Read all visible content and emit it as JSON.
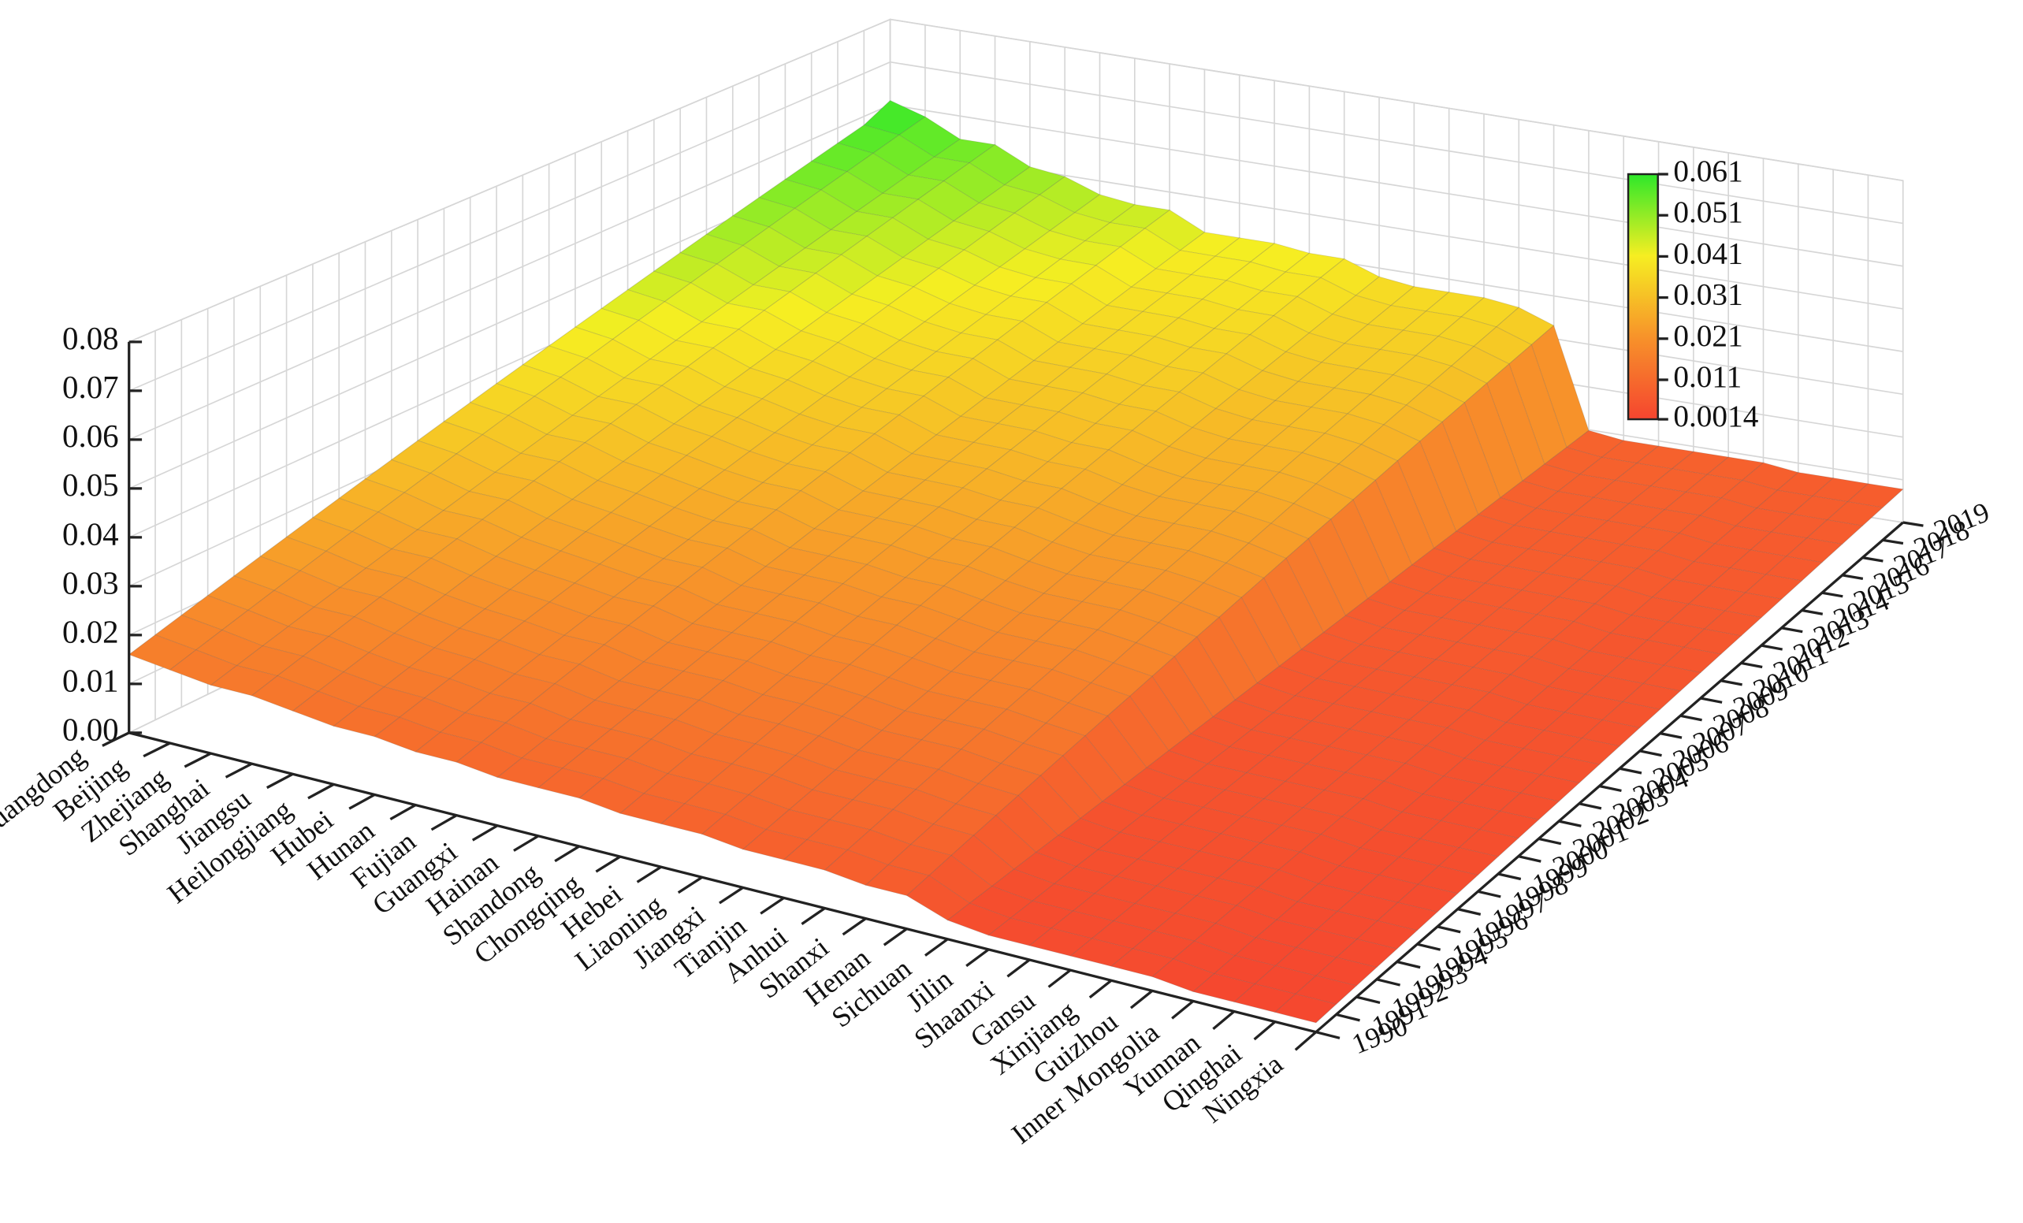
{
  "chart_data": {
    "type": "surface",
    "x_categories": [
      "Guangdong",
      "Beijing",
      "Zhejiang",
      "Shanghai",
      "Jiangsu",
      "Heilongjiang",
      "Hubei",
      "Hunan",
      "Fujian",
      "Guangxi",
      "Hainan",
      "Shandong",
      "Chongqing",
      "Hebei",
      "Liaoning",
      "Jiangxi",
      "Tianjin",
      "Anhui",
      "Shanxi",
      "Henan",
      "Sichuan",
      "Jilin",
      "Shaanxi",
      "Gansu",
      "Xinjiang",
      "Guizhou",
      "Inner Mongolia",
      "Yunnan",
      "Qinghai",
      "Ningxia"
    ],
    "y_categories": [
      "1990",
      "1991",
      "1992",
      "1993",
      "1994",
      "1995",
      "1996",
      "1997",
      "1998",
      "1999",
      "2000",
      "2001",
      "2002",
      "2003",
      "2004",
      "2005",
      "2006",
      "2007",
      "2008",
      "2009",
      "2010",
      "2011",
      "2012",
      "2013",
      "2014",
      "2015",
      "2016",
      "2017",
      "2018",
      "2019"
    ],
    "z": [
      [
        0.016,
        0.0175,
        0.019,
        0.0205,
        0.022,
        0.0235,
        0.025,
        0.0265,
        0.028,
        0.0295,
        0.031,
        0.0325,
        0.034,
        0.0355,
        0.037,
        0.0385,
        0.04,
        0.0415,
        0.043,
        0.0445,
        0.046,
        0.0475,
        0.049,
        0.0505,
        0.052,
        0.0535,
        0.055,
        0.0565,
        0.058,
        0.061
      ],
      [
        0.015,
        0.0165,
        0.018,
        0.0195,
        0.021,
        0.0225,
        0.024,
        0.0255,
        0.027,
        0.0285,
        0.03,
        0.0315,
        0.033,
        0.0345,
        0.036,
        0.0375,
        0.039,
        0.0405,
        0.042,
        0.0435,
        0.045,
        0.0465,
        0.048,
        0.0495,
        0.051,
        0.0525,
        0.054,
        0.0555,
        0.057,
        0.0585
      ],
      [
        0.014,
        0.0154,
        0.0168,
        0.0182,
        0.0196,
        0.021,
        0.0224,
        0.0238,
        0.0252,
        0.0266,
        0.028,
        0.0294,
        0.0308,
        0.0322,
        0.0336,
        0.035,
        0.0364,
        0.0378,
        0.0392,
        0.0406,
        0.042,
        0.0434,
        0.0448,
        0.0462,
        0.0476,
        0.049,
        0.0504,
        0.0518,
        0.0532,
        0.0546
      ],
      [
        0.014,
        0.0154,
        0.0168,
        0.0182,
        0.0196,
        0.021,
        0.0224,
        0.0238,
        0.0252,
        0.0266,
        0.028,
        0.0294,
        0.0308,
        0.0322,
        0.0336,
        0.035,
        0.0364,
        0.0378,
        0.0392,
        0.0406,
        0.042,
        0.0434,
        0.0448,
        0.0462,
        0.0476,
        0.049,
        0.0504,
        0.0518,
        0.0532,
        0.0546
      ],
      [
        0.013,
        0.0143,
        0.0156,
        0.0169,
        0.0182,
        0.0195,
        0.0208,
        0.0221,
        0.0234,
        0.0247,
        0.026,
        0.0273,
        0.0286,
        0.0299,
        0.0312,
        0.0325,
        0.0338,
        0.0351,
        0.0364,
        0.0377,
        0.039,
        0.0403,
        0.0416,
        0.0429,
        0.0442,
        0.0455,
        0.0468,
        0.0481,
        0.0494,
        0.0507
      ],
      [
        0.012,
        0.0133,
        0.0146,
        0.0159,
        0.0172,
        0.0185,
        0.0198,
        0.0211,
        0.0224,
        0.0237,
        0.025,
        0.0263,
        0.0276,
        0.0289,
        0.0302,
        0.0315,
        0.0328,
        0.0341,
        0.0354,
        0.0367,
        0.038,
        0.0393,
        0.0406,
        0.0419,
        0.0432,
        0.0445,
        0.0458,
        0.0471,
        0.0484,
        0.0497
      ],
      [
        0.012,
        0.0132,
        0.0144,
        0.0156,
        0.0168,
        0.018,
        0.0192,
        0.0204,
        0.0216,
        0.0228,
        0.024,
        0.0252,
        0.0264,
        0.0276,
        0.0288,
        0.03,
        0.0312,
        0.0324,
        0.0336,
        0.0348,
        0.036,
        0.0372,
        0.0384,
        0.0396,
        0.0408,
        0.042,
        0.0432,
        0.0444,
        0.0456,
        0.0468
      ],
      [
        0.011,
        0.0122,
        0.0134,
        0.0146,
        0.0158,
        0.017,
        0.0182,
        0.0194,
        0.0206,
        0.0218,
        0.023,
        0.0242,
        0.0254,
        0.0266,
        0.0278,
        0.029,
        0.0302,
        0.0314,
        0.0326,
        0.0338,
        0.035,
        0.0362,
        0.0374,
        0.0386,
        0.0398,
        0.041,
        0.0422,
        0.0434,
        0.0446,
        0.0458
      ],
      [
        0.011,
        0.0122,
        0.0134,
        0.0146,
        0.0158,
        0.017,
        0.0182,
        0.0194,
        0.0206,
        0.0218,
        0.023,
        0.0242,
        0.0254,
        0.0266,
        0.0278,
        0.029,
        0.0302,
        0.0314,
        0.0326,
        0.0338,
        0.035,
        0.0362,
        0.0374,
        0.0386,
        0.0398,
        0.041,
        0.0422,
        0.0434,
        0.0446,
        0.0458
      ],
      [
        0.01,
        0.0111,
        0.0122,
        0.0133,
        0.0144,
        0.0155,
        0.0166,
        0.0177,
        0.0188,
        0.0199,
        0.021,
        0.0221,
        0.0232,
        0.0243,
        0.0254,
        0.0265,
        0.0276,
        0.0287,
        0.0298,
        0.0309,
        0.032,
        0.0331,
        0.0342,
        0.0353,
        0.0364,
        0.0375,
        0.0386,
        0.0397,
        0.0408,
        0.0419
      ],
      [
        0.01,
        0.0111,
        0.0122,
        0.0133,
        0.0144,
        0.0155,
        0.0166,
        0.0177,
        0.0188,
        0.0199,
        0.021,
        0.0221,
        0.0232,
        0.0243,
        0.0254,
        0.0265,
        0.0276,
        0.0287,
        0.0298,
        0.0309,
        0.032,
        0.0331,
        0.0342,
        0.0353,
        0.0364,
        0.0375,
        0.0386,
        0.0397,
        0.0408,
        0.0419
      ],
      [
        0.01,
        0.0111,
        0.0122,
        0.0133,
        0.0144,
        0.0155,
        0.0166,
        0.0177,
        0.0188,
        0.0199,
        0.021,
        0.0221,
        0.0232,
        0.0243,
        0.0254,
        0.0265,
        0.0276,
        0.0287,
        0.0298,
        0.0309,
        0.032,
        0.0331,
        0.0342,
        0.0353,
        0.0364,
        0.0375,
        0.0386,
        0.0397,
        0.0408,
        0.0419
      ],
      [
        0.009,
        0.0101,
        0.0112,
        0.0123,
        0.0134,
        0.0145,
        0.0156,
        0.0167,
        0.0178,
        0.0189,
        0.02,
        0.0211,
        0.0222,
        0.0233,
        0.0244,
        0.0255,
        0.0266,
        0.0277,
        0.0288,
        0.0299,
        0.031,
        0.0321,
        0.0332,
        0.0343,
        0.0354,
        0.0365,
        0.0376,
        0.0387,
        0.0398,
        0.0409
      ],
      [
        0.009,
        0.0101,
        0.0112,
        0.0123,
        0.0134,
        0.0145,
        0.0156,
        0.0167,
        0.0178,
        0.0189,
        0.02,
        0.0211,
        0.0222,
        0.0233,
        0.0244,
        0.0255,
        0.0266,
        0.0277,
        0.0288,
        0.0299,
        0.031,
        0.0321,
        0.0332,
        0.0343,
        0.0354,
        0.0365,
        0.0376,
        0.0387,
        0.0398,
        0.0409
      ],
      [
        0.009,
        0.01,
        0.011,
        0.012,
        0.013,
        0.014,
        0.015,
        0.016,
        0.017,
        0.018,
        0.019,
        0.02,
        0.021,
        0.022,
        0.023,
        0.024,
        0.025,
        0.026,
        0.027,
        0.028,
        0.029,
        0.03,
        0.031,
        0.032,
        0.033,
        0.034,
        0.035,
        0.036,
        0.037,
        0.038
      ],
      [
        0.008,
        0.009,
        0.01,
        0.011,
        0.012,
        0.013,
        0.014,
        0.015,
        0.016,
        0.017,
        0.018,
        0.019,
        0.02,
        0.021,
        0.022,
        0.023,
        0.024,
        0.025,
        0.026,
        0.027,
        0.028,
        0.029,
        0.03,
        0.031,
        0.032,
        0.033,
        0.034,
        0.035,
        0.036,
        0.037
      ],
      [
        0.008,
        0.009,
        0.01,
        0.011,
        0.012,
        0.013,
        0.014,
        0.015,
        0.016,
        0.017,
        0.018,
        0.019,
        0.02,
        0.021,
        0.022,
        0.023,
        0.024,
        0.025,
        0.026,
        0.027,
        0.028,
        0.029,
        0.03,
        0.031,
        0.032,
        0.033,
        0.034,
        0.035,
        0.036,
        0.037
      ],
      [
        0.008,
        0.009,
        0.01,
        0.011,
        0.012,
        0.013,
        0.014,
        0.015,
        0.016,
        0.017,
        0.018,
        0.019,
        0.02,
        0.021,
        0.022,
        0.023,
        0.024,
        0.025,
        0.026,
        0.027,
        0.028,
        0.029,
        0.03,
        0.031,
        0.032,
        0.033,
        0.034,
        0.035,
        0.036,
        0.037
      ],
      [
        0.007,
        0.008,
        0.009,
        0.01,
        0.011,
        0.012,
        0.013,
        0.014,
        0.015,
        0.016,
        0.017,
        0.018,
        0.019,
        0.02,
        0.021,
        0.022,
        0.023,
        0.024,
        0.025,
        0.026,
        0.027,
        0.028,
        0.029,
        0.03,
        0.031,
        0.032,
        0.033,
        0.034,
        0.035,
        0.036
      ],
      [
        0.007,
        0.0079,
        0.0088,
        0.0097,
        0.0106,
        0.0115,
        0.0124,
        0.0133,
        0.0142,
        0.0151,
        0.016,
        0.0169,
        0.0178,
        0.0187,
        0.0196,
        0.0205,
        0.0214,
        0.0223,
        0.0232,
        0.0241,
        0.025,
        0.0259,
        0.0268,
        0.0277,
        0.0286,
        0.0295,
        0.0304,
        0.0313,
        0.0322,
        0.0331
      ],
      [
        0.004,
        0.0042,
        0.0044,
        0.0046,
        0.0048,
        0.005,
        0.0052,
        0.0054,
        0.0056,
        0.0058,
        0.006,
        0.0062,
        0.0064,
        0.0066,
        0.0068,
        0.007,
        0.0072,
        0.0074,
        0.0076,
        0.0078,
        0.008,
        0.0082,
        0.0084,
        0.0086,
        0.0088,
        0.009,
        0.0092,
        0.0094,
        0.0096,
        0.0098
      ],
      [
        0.003,
        0.0032,
        0.0034,
        0.0036,
        0.0038,
        0.004,
        0.0042,
        0.0044,
        0.0046,
        0.0048,
        0.005,
        0.0052,
        0.0054,
        0.0056,
        0.0058,
        0.006,
        0.0062,
        0.0064,
        0.0066,
        0.0068,
        0.007,
        0.0072,
        0.0074,
        0.0076,
        0.0078,
        0.008,
        0.0082,
        0.0084,
        0.0086,
        0.0088
      ],
      [
        0.003,
        0.0032,
        0.0034,
        0.0036,
        0.0038,
        0.004,
        0.0042,
        0.0044,
        0.0046,
        0.0048,
        0.005,
        0.0052,
        0.0054,
        0.0056,
        0.0058,
        0.006,
        0.0062,
        0.0064,
        0.0066,
        0.0068,
        0.007,
        0.0072,
        0.0074,
        0.0076,
        0.0078,
        0.008,
        0.0082,
        0.0084,
        0.0086,
        0.0088
      ],
      [
        0.003,
        0.0032,
        0.0034,
        0.0036,
        0.0038,
        0.004,
        0.0042,
        0.0044,
        0.0046,
        0.0048,
        0.005,
        0.0052,
        0.0054,
        0.0056,
        0.0058,
        0.006,
        0.0062,
        0.0064,
        0.0066,
        0.0068,
        0.007,
        0.0072,
        0.0074,
        0.0076,
        0.0078,
        0.008,
        0.0082,
        0.0084,
        0.0086,
        0.0088
      ],
      [
        0.003,
        0.0032,
        0.0034,
        0.0036,
        0.0038,
        0.004,
        0.0042,
        0.0044,
        0.0046,
        0.0048,
        0.005,
        0.0052,
        0.0054,
        0.0056,
        0.0058,
        0.006,
        0.0062,
        0.0064,
        0.0066,
        0.0068,
        0.007,
        0.0072,
        0.0074,
        0.0076,
        0.0078,
        0.008,
        0.0082,
        0.0084,
        0.0086,
        0.0088
      ],
      [
        0.003,
        0.0032,
        0.0034,
        0.0036,
        0.0038,
        0.004,
        0.0042,
        0.0044,
        0.0046,
        0.0048,
        0.005,
        0.0052,
        0.0054,
        0.0056,
        0.0058,
        0.006,
        0.0062,
        0.0064,
        0.0066,
        0.0068,
        0.007,
        0.0072,
        0.0074,
        0.0076,
        0.0078,
        0.008,
        0.0082,
        0.0084,
        0.0086,
        0.0088
      ],
      [
        0.002,
        0.0022,
        0.0024,
        0.0026,
        0.0028,
        0.003,
        0.0032,
        0.0034,
        0.0036,
        0.0038,
        0.004,
        0.0042,
        0.0044,
        0.0046,
        0.0048,
        0.005,
        0.0052,
        0.0054,
        0.0056,
        0.0058,
        0.006,
        0.0062,
        0.0064,
        0.0066,
        0.0068,
        0.007,
        0.0072,
        0.0074,
        0.0076,
        0.0078
      ],
      [
        0.002,
        0.0022,
        0.0024,
        0.0026,
        0.0028,
        0.003,
        0.0032,
        0.0034,
        0.0036,
        0.0038,
        0.004,
        0.0042,
        0.0044,
        0.0046,
        0.0048,
        0.005,
        0.0052,
        0.0054,
        0.0056,
        0.0058,
        0.006,
        0.0062,
        0.0064,
        0.0066,
        0.0068,
        0.007,
        0.0072,
        0.0074,
        0.0076,
        0.0078
      ],
      [
        0.002,
        0.0022,
        0.0024,
        0.0026,
        0.0028,
        0.003,
        0.0032,
        0.0034,
        0.0036,
        0.0038,
        0.004,
        0.0042,
        0.0044,
        0.0046,
        0.0048,
        0.005,
        0.0052,
        0.0054,
        0.0056,
        0.0058,
        0.006,
        0.0062,
        0.0064,
        0.0066,
        0.0068,
        0.007,
        0.0072,
        0.0074,
        0.0076,
        0.0078
      ],
      [
        0.002,
        0.0022,
        0.0024,
        0.0026,
        0.0028,
        0.003,
        0.0032,
        0.0034,
        0.0036,
        0.0038,
        0.004,
        0.0042,
        0.0044,
        0.0046,
        0.0048,
        0.005,
        0.0052,
        0.0054,
        0.0056,
        0.0058,
        0.006,
        0.0062,
        0.0064,
        0.0066,
        0.0068,
        0.007,
        0.0072,
        0.0074,
        0.0076,
        0.0078
      ]
    ],
    "zlim": [
      0,
      0.08
    ],
    "zticks": [
      {
        "value": 0,
        "label": "0.00"
      },
      0.01,
      0.02,
      0.03,
      0.04,
      0.05,
      0.06,
      0.07,
      0.08
    ],
    "colorbar_lim": [
      0.0014,
      0.061
    ],
    "colorbar_ticks": [
      0.061,
      0.051,
      0.041,
      0.031,
      0.021,
      0.011,
      0.0014
    ],
    "colormap": [
      "#f5452f",
      "#f7922a",
      "#f6ee22",
      "#2ee82a"
    ],
    "grid": true
  }
}
